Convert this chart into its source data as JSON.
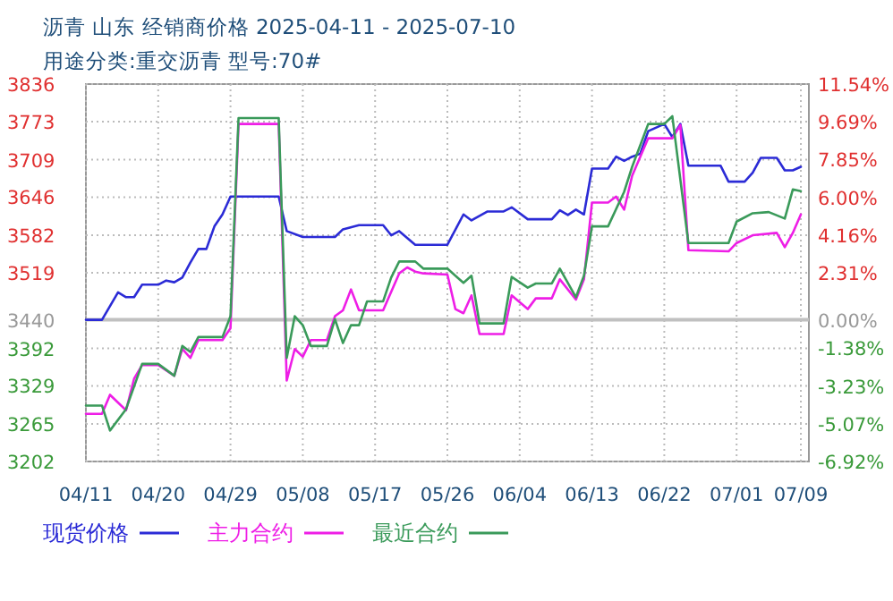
{
  "chart_data": {
    "type": "line",
    "title": "沥青  山东  经销商价格  2025-04-11 - 2025-07-10",
    "subtitle": "用途分类:重交沥青  型号:70#",
    "xlim": [
      "2025-04-11",
      "2025-07-10"
    ],
    "xticks": [
      {
        "value": "2025-04-11",
        "label": "04/11"
      },
      {
        "value": "2025-04-20",
        "label": "04/20"
      },
      {
        "value": "2025-04-29",
        "label": "04/29"
      },
      {
        "value": "2025-05-08",
        "label": "05/08"
      },
      {
        "value": "2025-05-17",
        "label": "05/17"
      },
      {
        "value": "2025-05-26",
        "label": "05/26"
      },
      {
        "value": "2025-06-04",
        "label": "06/04"
      },
      {
        "value": "2025-06-13",
        "label": "06/13"
      },
      {
        "value": "2025-06-22",
        "label": "06/22"
      },
      {
        "value": "2025-07-01",
        "label": "07/01"
      },
      {
        "value": "2025-07-09",
        "label": "07/09"
      }
    ],
    "ylim": [
      3202,
      3836
    ],
    "yticks": [
      3202,
      3265,
      3329,
      3392,
      3440,
      3519,
      3582,
      3646,
      3709,
      3773,
      3836
    ],
    "y2lim": [
      -6.92,
      11.54
    ],
    "y2ticks": [
      {
        "value": -6.92,
        "label": "-6.92%"
      },
      {
        "value": -5.07,
        "label": "-5.07%"
      },
      {
        "value": -3.23,
        "label": "-3.23%"
      },
      {
        "value": -1.38,
        "label": "-1.38%"
      },
      {
        "value": 0,
        "label": "0.00%"
      },
      {
        "value": 2.31,
        "label": "2.31%"
      },
      {
        "value": 4.16,
        "label": "4.16%"
      },
      {
        "value": 6.0,
        "label": "6.00%"
      },
      {
        "value": 7.85,
        "label": "7.85%"
      },
      {
        "value": 9.69,
        "label": "9.69%"
      },
      {
        "value": 11.54,
        "label": "11.54%"
      }
    ],
    "grid": true,
    "legend": "bottom",
    "marker": "none",
    "line_style": "solid",
    "ref_lines": [
      {
        "axis": "y",
        "value": 3440,
        "color": "#c0c0c0"
      }
    ],
    "series": [
      {
        "name": "现货价格",
        "color": "#2b2bd6",
        "x": [
          "2025-04-11",
          "2025-04-13",
          "2025-04-15",
          "2025-04-16",
          "2025-04-17",
          "2025-04-18",
          "2025-04-20",
          "2025-04-21",
          "2025-04-22",
          "2025-04-23",
          "2025-04-24",
          "2025-04-25",
          "2025-04-26",
          "2025-04-27",
          "2025-04-28",
          "2025-04-29",
          "2025-05-05",
          "2025-05-06",
          "2025-05-08",
          "2025-05-12",
          "2025-05-13",
          "2025-05-15",
          "2025-05-18",
          "2025-05-19",
          "2025-05-20",
          "2025-05-22",
          "2025-05-23",
          "2025-05-26",
          "2025-05-28",
          "2025-05-29",
          "2025-05-31",
          "2025-06-02",
          "2025-06-03",
          "2025-06-05",
          "2025-06-08",
          "2025-06-09",
          "2025-06-10",
          "2025-06-11",
          "2025-06-12",
          "2025-06-13",
          "2025-06-15",
          "2025-06-16",
          "2025-06-17",
          "2025-06-18",
          "2025-06-19",
          "2025-06-20",
          "2025-06-22",
          "2025-06-23",
          "2025-06-24",
          "2025-06-25",
          "2025-06-29",
          "2025-06-30",
          "2025-07-02",
          "2025-07-03",
          "2025-07-04",
          "2025-07-06",
          "2025-07-07",
          "2025-07-08",
          "2025-07-09"
        ],
        "values": [
          3440,
          3440,
          3486,
          3478,
          3478,
          3499,
          3499,
          3506,
          3503,
          3511,
          3536,
          3559,
          3559,
          3597,
          3617,
          3647,
          3647,
          3589,
          3579,
          3579,
          3592,
          3599,
          3599,
          3582,
          3589,
          3566,
          3566,
          3566,
          3617,
          3607,
          3622,
          3622,
          3629,
          3609,
          3609,
          3624,
          3616,
          3625,
          3617,
          3694,
          3694,
          3714,
          3707,
          3714,
          3719,
          3757,
          3769,
          3747,
          3769,
          3699,
          3699,
          3672,
          3672,
          3687,
          3712,
          3712,
          3691,
          3691,
          3697
        ]
      },
      {
        "name": "主力合约",
        "color": "#ee1ee6",
        "x": [
          "2025-04-11",
          "2025-04-13",
          "2025-04-14",
          "2025-04-16",
          "2025-04-17",
          "2025-04-18",
          "2025-04-20",
          "2025-04-22",
          "2025-04-23",
          "2025-04-24",
          "2025-04-25",
          "2025-04-28",
          "2025-04-29",
          "2025-04-30",
          "2025-05-05",
          "2025-05-06",
          "2025-05-07",
          "2025-05-08",
          "2025-05-09",
          "2025-05-11",
          "2025-05-12",
          "2025-05-13",
          "2025-05-14",
          "2025-05-15",
          "2025-05-18",
          "2025-05-20",
          "2025-05-21",
          "2025-05-22",
          "2025-05-23",
          "2025-05-26",
          "2025-05-27",
          "2025-05-28",
          "2025-05-29",
          "2025-05-30",
          "2025-06-02",
          "2025-06-03",
          "2025-06-05",
          "2025-06-06",
          "2025-06-08",
          "2025-06-09",
          "2025-06-11",
          "2025-06-12",
          "2025-06-13",
          "2025-06-15",
          "2025-06-16",
          "2025-06-17",
          "2025-06-18",
          "2025-06-20",
          "2025-06-23",
          "2025-06-24",
          "2025-06-25",
          "2025-06-30",
          "2025-07-01",
          "2025-07-03",
          "2025-07-06",
          "2025-07-07",
          "2025-07-08",
          "2025-07-09"
        ],
        "values": [
          3282,
          3282,
          3314,
          3288,
          3341,
          3364,
          3364,
          3346,
          3391,
          3376,
          3406,
          3406,
          3426,
          3769,
          3769,
          3338,
          3391,
          3378,
          3406,
          3406,
          3446,
          3456,
          3491,
          3456,
          3456,
          3518,
          3528,
          3521,
          3518,
          3516,
          3458,
          3451,
          3481,
          3416,
          3416,
          3481,
          3458,
          3476,
          3476,
          3508,
          3474,
          3508,
          3637,
          3637,
          3647,
          3625,
          3682,
          3745,
          3745,
          3767,
          3557,
          3555,
          3569,
          3582,
          3586,
          3562,
          3586,
          3617
        ]
      },
      {
        "name": "最近合约",
        "color": "#3a9a5a",
        "x": [
          "2025-04-11",
          "2025-04-13",
          "2025-04-14",
          "2025-04-16",
          "2025-04-18",
          "2025-04-20",
          "2025-04-22",
          "2025-04-23",
          "2025-04-24",
          "2025-04-25",
          "2025-04-28",
          "2025-04-29",
          "2025-04-30",
          "2025-05-05",
          "2025-05-06",
          "2025-05-07",
          "2025-05-08",
          "2025-05-09",
          "2025-05-11",
          "2025-05-12",
          "2025-05-13",
          "2025-05-14",
          "2025-05-15",
          "2025-05-16",
          "2025-05-18",
          "2025-05-19",
          "2025-05-20",
          "2025-05-22",
          "2025-05-23",
          "2025-05-26",
          "2025-05-28",
          "2025-05-29",
          "2025-05-30",
          "2025-06-02",
          "2025-06-03",
          "2025-06-05",
          "2025-06-06",
          "2025-06-08",
          "2025-06-09",
          "2025-06-11",
          "2025-06-12",
          "2025-06-13",
          "2025-06-15",
          "2025-06-17",
          "2025-06-18",
          "2025-06-20",
          "2025-06-22",
          "2025-06-23",
          "2025-06-25",
          "2025-06-30",
          "2025-07-01",
          "2025-07-03",
          "2025-07-05",
          "2025-07-07",
          "2025-07-08",
          "2025-07-09"
        ],
        "values": [
          3296,
          3296,
          3254,
          3290,
          3366,
          3366,
          3346,
          3396,
          3386,
          3411,
          3411,
          3446,
          3779,
          3779,
          3376,
          3446,
          3431,
          3396,
          3396,
          3441,
          3401,
          3431,
          3431,
          3471,
          3471,
          3511,
          3538,
          3538,
          3526,
          3526,
          3502,
          3514,
          3434,
          3434,
          3512,
          3494,
          3501,
          3501,
          3526,
          3478,
          3514,
          3597,
          3597,
          3655,
          3697,
          3769,
          3769,
          3782,
          3569,
          3569,
          3605,
          3619,
          3621,
          3610,
          3659,
          3656
        ]
      }
    ]
  }
}
